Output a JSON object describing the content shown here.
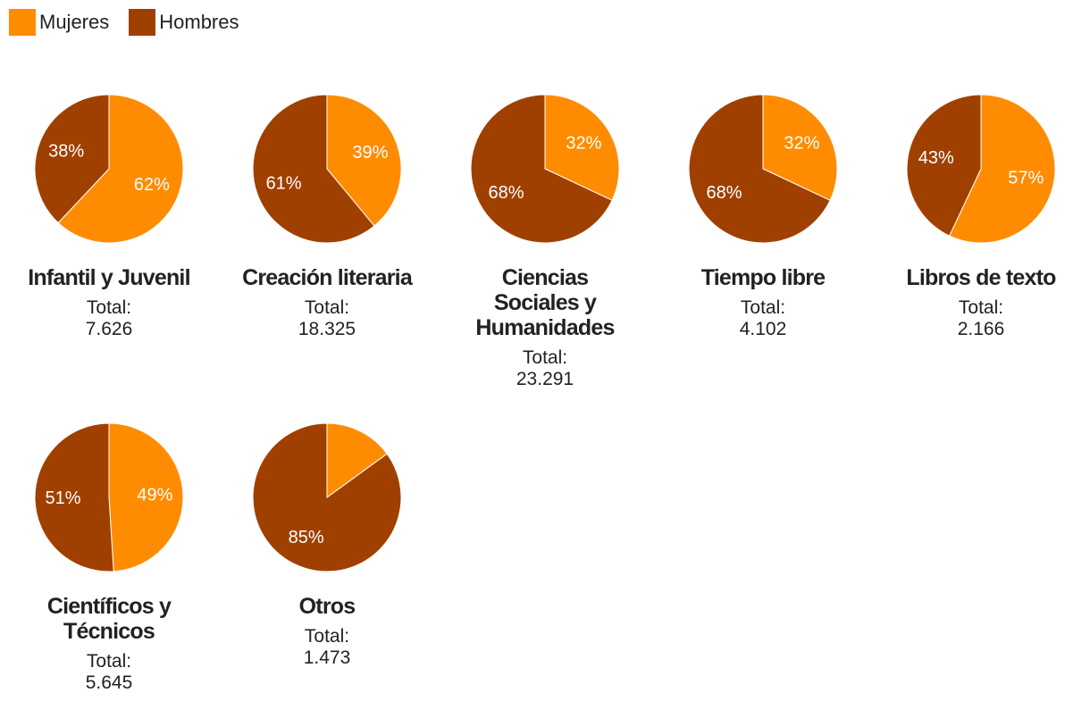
{
  "legend": {
    "items": [
      {
        "label": "Mujeres",
        "color": "#ff8c00"
      },
      {
        "label": "Hombres",
        "color": "#a04000"
      }
    ]
  },
  "colors": {
    "mujeres": "#ff8c00",
    "hombres": "#a04000",
    "slice_border": "#ffffff",
    "label_text": "#ffffff"
  },
  "chart_data": [
    {
      "type": "pie",
      "title": "Infantil y Juvenil",
      "total_label": "Total:",
      "total_value": "7.626",
      "slices": [
        {
          "name": "Mujeres",
          "value": 62,
          "label": "62%"
        },
        {
          "name": "Hombres",
          "value": 38,
          "label": "38%"
        }
      ]
    },
    {
      "type": "pie",
      "title": "Creación literaria",
      "total_label": "Total:",
      "total_value": "18.325",
      "slices": [
        {
          "name": "Mujeres",
          "value": 39,
          "label": "39%"
        },
        {
          "name": "Hombres",
          "value": 61,
          "label": "61%"
        }
      ]
    },
    {
      "type": "pie",
      "title": "Ciencias Sociales y Humanidades",
      "total_label": "Total:",
      "total_value": "23.291",
      "slices": [
        {
          "name": "Mujeres",
          "value": 32,
          "label": "32%"
        },
        {
          "name": "Hombres",
          "value": 68,
          "label": "68%"
        }
      ]
    },
    {
      "type": "pie",
      "title": "Tiempo libre",
      "total_label": "Total:",
      "total_value": "4.102",
      "slices": [
        {
          "name": "Mujeres",
          "value": 32,
          "label": "32%"
        },
        {
          "name": "Hombres",
          "value": 68,
          "label": "68%"
        }
      ]
    },
    {
      "type": "pie",
      "title": "Libros de texto",
      "total_label": "Total:",
      "total_value": "2.166",
      "slices": [
        {
          "name": "Mujeres",
          "value": 57,
          "label": "57%"
        },
        {
          "name": "Hombres",
          "value": 43,
          "label": "43%"
        }
      ]
    },
    {
      "type": "pie",
      "title": "Científicos y Técnicos",
      "total_label": "Total:",
      "total_value": "5.645",
      "slices": [
        {
          "name": "Mujeres",
          "value": 49,
          "label": "49%"
        },
        {
          "name": "Hombres",
          "value": 51,
          "label": "51%"
        }
      ]
    },
    {
      "type": "pie",
      "title": "Otros",
      "total_label": "Total:",
      "total_value": "1.473",
      "slices": [
        {
          "name": "Mujeres",
          "value": 15,
          "label": ""
        },
        {
          "name": "Hombres",
          "value": 85,
          "label": "85%"
        }
      ]
    }
  ]
}
